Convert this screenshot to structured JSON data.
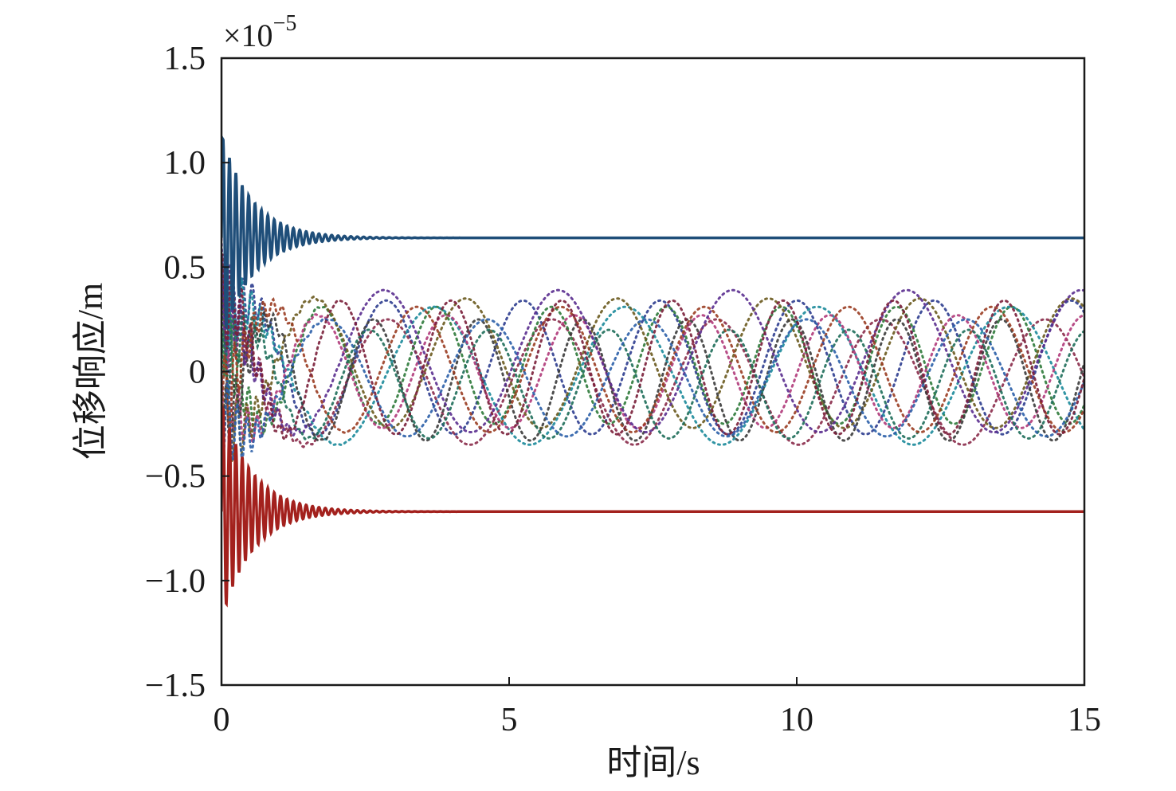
{
  "chart_data": {
    "type": "line",
    "title": "",
    "xlabel": "时间/s",
    "ylabel": "位移响应/m",
    "y_multiplier": "×10",
    "y_multiplier_exponent": "−5",
    "xlim": [
      0,
      15
    ],
    "ylim": [
      -1.5,
      1.5
    ],
    "grid": false,
    "legend": "none",
    "x_ticks": [
      {
        "value": 0,
        "label": "0"
      },
      {
        "value": 5,
        "label": "5"
      },
      {
        "value": 10,
        "label": "10"
      },
      {
        "value": 15,
        "label": "15"
      }
    ],
    "y_ticks": [
      {
        "value": 1.5,
        "label": "1.5"
      },
      {
        "value": 1.0,
        "label": "1.0"
      },
      {
        "value": 0.5,
        "label": "0.5"
      },
      {
        "value": 0,
        "label": "0"
      },
      {
        "value": -0.5,
        "label": "−0.5"
      },
      {
        "value": -1.0,
        "label": "−1.0"
      },
      {
        "value": -1.5,
        "label": "−1.5"
      }
    ],
    "decaying_series": [
      {
        "color": "#1f4e79",
        "steady_value": 0.64,
        "initial_amplitude": 0.5,
        "decay_rate": 1.9,
        "frequency": 9.0,
        "style": "solid"
      },
      {
        "color": "#a3211d",
        "steady_value": -0.67,
        "initial_amplitude": 0.52,
        "decay_rate": 1.9,
        "frequency": 9.0,
        "style": "solid"
      }
    ],
    "oscillating_series": [
      {
        "color": "#2e3d8f",
        "amplitude": 0.32,
        "frequency": 0.42,
        "phase": 0.3,
        "offset": 0.02
      },
      {
        "color": "#8a2b4a",
        "amplitude": 0.3,
        "frequency": 0.35,
        "phase": 1.5,
        "offset": -0.05
      },
      {
        "color": "#2d7a3a",
        "amplitude": 0.28,
        "frequency": 0.5,
        "phase": 2.4,
        "offset": 0.03
      },
      {
        "color": "#1b8a9a",
        "amplitude": 0.33,
        "frequency": 0.3,
        "phase": 0.9,
        "offset": -0.02
      },
      {
        "color": "#b03a7a",
        "amplitude": 0.27,
        "frequency": 0.45,
        "phase": 3.1,
        "offset": 0.0
      },
      {
        "color": "#6a5a1e",
        "amplitude": 0.31,
        "frequency": 0.38,
        "phase": 4.0,
        "offset": 0.04
      },
      {
        "color": "#3b3b3b",
        "amplitude": 0.29,
        "frequency": 0.55,
        "phase": 5.0,
        "offset": -0.04
      },
      {
        "color": "#5a2d8f",
        "amplitude": 0.34,
        "frequency": 0.33,
        "phase": 2.0,
        "offset": 0.05
      },
      {
        "color": "#1e6e5a",
        "amplitude": 0.26,
        "frequency": 0.48,
        "phase": 0.1,
        "offset": -0.06
      },
      {
        "color": "#9a3d22",
        "amplitude": 0.3,
        "frequency": 0.4,
        "phase": 5.6,
        "offset": 0.01
      },
      {
        "color": "#2b5fa8",
        "amplitude": 0.28,
        "frequency": 0.36,
        "phase": 3.7,
        "offset": -0.03
      },
      {
        "color": "#7a1f3a",
        "amplitude": 0.32,
        "frequency": 0.52,
        "phase": 1.1,
        "offset": 0.02
      }
    ]
  }
}
